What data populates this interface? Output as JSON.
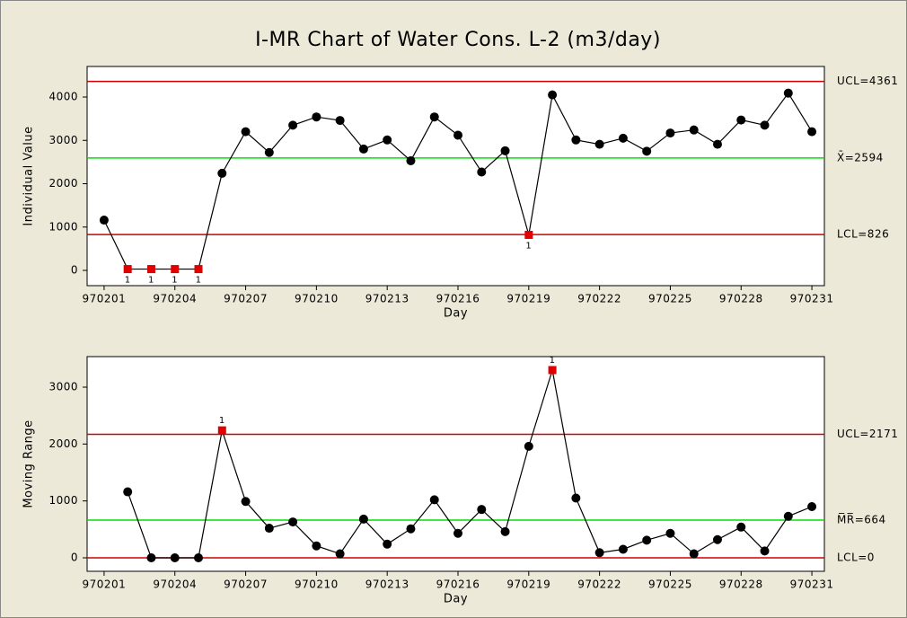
{
  "title": "I-MR Chart of Water Cons. L-2 (m3/day)",
  "chart_data": [
    {
      "type": "line",
      "ylabel": "Individual Value",
      "xlabel": "Day",
      "x": [
        970201,
        970202,
        970203,
        970204,
        970205,
        970206,
        970207,
        970208,
        970209,
        970210,
        970211,
        970212,
        970213,
        970214,
        970215,
        970216,
        970217,
        970218,
        970219,
        970220,
        970221,
        970222,
        970223,
        970224,
        970225,
        970226,
        970227,
        970228,
        970229,
        970230,
        970231
      ],
      "series": [
        {
          "color": "#000000",
          "values": [
            1160,
            30,
            30,
            30,
            30,
            2240,
            3200,
            2720,
            3350,
            3540,
            3460,
            2800,
            3010,
            2530,
            3540,
            3120,
            2270,
            2760,
            820,
            4050,
            3010,
            2910,
            3050,
            2750,
            3170,
            3240,
            2910,
            3470,
            3350,
            4090,
            3200
          ],
          "point_labels": [
            null,
            "1",
            "1",
            "1",
            "1",
            null,
            null,
            null,
            null,
            null,
            null,
            null,
            null,
            null,
            null,
            null,
            null,
            null,
            "1",
            null,
            null,
            null,
            null,
            null,
            null,
            null,
            null,
            null,
            null,
            null,
            null
          ]
        }
      ],
      "flag_color": "#e00000",
      "xlim": [
        970200.28,
        970231.53
      ],
      "xticks": [
        970201,
        970204,
        970207,
        970210,
        970213,
        970216,
        970219,
        970222,
        970225,
        970228,
        970231
      ],
      "ylim": [
        -352,
        4705
      ],
      "yticks": [
        0,
        1000,
        2000,
        3000,
        4000
      ],
      "control_lines": [
        {
          "value": 4361,
          "label": "UCL=4361",
          "color": "#d00000"
        },
        {
          "value": 2594,
          "label": "X̄=2594",
          "color": "#00e000"
        },
        {
          "value": 826,
          "label": "LCL=826",
          "color": "#d00000"
        }
      ]
    },
    {
      "type": "line",
      "ylabel": "Moving Range",
      "xlabel": "Day",
      "x": [
        970201,
        970202,
        970203,
        970204,
        970205,
        970206,
        970207,
        970208,
        970209,
        970210,
        970211,
        970212,
        970213,
        970214,
        970215,
        970216,
        970217,
        970218,
        970219,
        970220,
        970221,
        970222,
        970223,
        970224,
        970225,
        970226,
        970227,
        970228,
        970229,
        970230,
        970231
      ],
      "series": [
        {
          "color": "#000000",
          "values": [
            null,
            1160,
            0,
            0,
            0,
            2240,
            990,
            520,
            630,
            210,
            70,
            680,
            240,
            510,
            1020,
            430,
            850,
            460,
            1960,
            3300,
            1050,
            90,
            150,
            310,
            430,
            70,
            320,
            540,
            120,
            730,
            900
          ],
          "point_labels": [
            null,
            null,
            null,
            null,
            null,
            "1",
            null,
            null,
            null,
            null,
            null,
            null,
            null,
            null,
            null,
            null,
            null,
            null,
            null,
            "1",
            null,
            null,
            null,
            null,
            null,
            null,
            null,
            null,
            null,
            null,
            null
          ]
        }
      ],
      "flag_color": "#e00000",
      "xlim": [
        970200.28,
        970231.53
      ],
      "xticks": [
        970201,
        970204,
        970207,
        970210,
        970213,
        970216,
        970219,
        970222,
        970225,
        970228,
        970231
      ],
      "ylim": [
        -237,
        3537
      ],
      "yticks": [
        0,
        1000,
        2000,
        3000
      ],
      "control_lines": [
        {
          "value": 2171,
          "label": "UCL=2171",
          "color": "#d00000"
        },
        {
          "value": 664,
          "label": "M̅R̅=664",
          "color": "#00e000"
        },
        {
          "value": 0,
          "label": "LCL=0",
          "color": "#d00000"
        }
      ]
    }
  ]
}
